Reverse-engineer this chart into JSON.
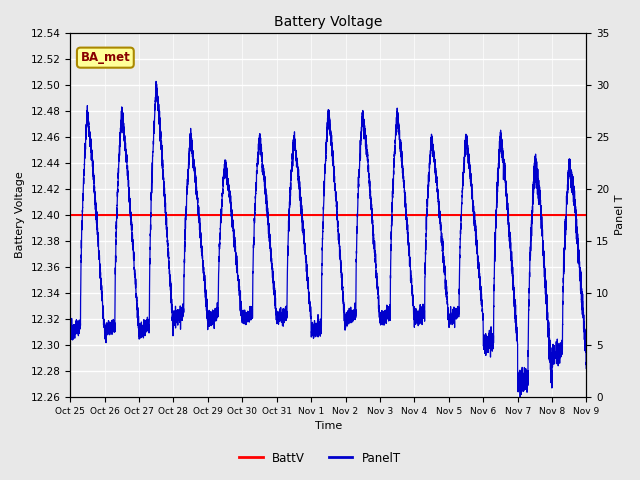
{
  "title": "Battery Voltage",
  "ylabel_left": "Battery Voltage",
  "ylabel_right": "Panel T",
  "xlabel": "Time",
  "ylim_left": [
    12.26,
    12.54
  ],
  "ylim_right": [
    0,
    35
  ],
  "yticks_left": [
    12.26,
    12.28,
    12.3,
    12.32,
    12.34,
    12.36,
    12.38,
    12.4,
    12.42,
    12.44,
    12.46,
    12.48,
    12.5,
    12.52,
    12.54
  ],
  "yticks_right": [
    0,
    5,
    10,
    15,
    20,
    25,
    30,
    35
  ],
  "xtick_labels": [
    "Oct 25",
    "Oct 26",
    "Oct 27",
    "Oct 28",
    "Oct 29",
    "Oct 30",
    "Oct 31",
    "Nov 1",
    "Nov 2",
    "Nov 3",
    "Nov 4",
    "Nov 5",
    "Nov 6",
    "Nov 7",
    "Nov 8",
    "Nov 9"
  ],
  "batt_v": 12.4,
  "batt_color": "#ff0000",
  "panel_color": "#0000cc",
  "fig_bg": "#e8e8e8",
  "plot_bg": "#ebebeb",
  "annotation_text": "BA_met",
  "annotation_bg": "#ffff99",
  "annotation_border": "#aa8800",
  "annotation_text_color": "#880000",
  "legend_batt_label": "BattV",
  "legend_panel_label": "PanelT",
  "num_days": 15
}
